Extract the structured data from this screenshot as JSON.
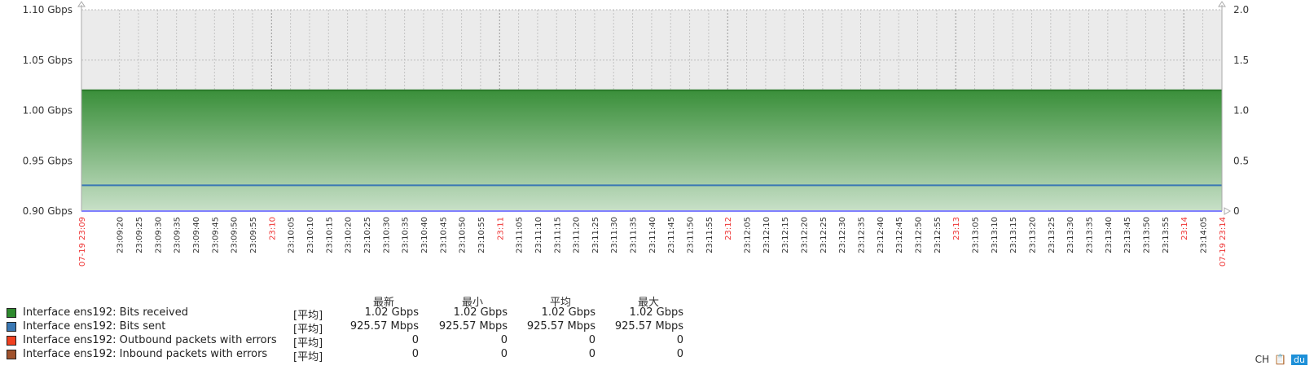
{
  "chart_data": {
    "type": "area",
    "title": "",
    "y_left_ticks": [
      "1.10 Gbps",
      "1.05 Gbps",
      "1.00 Gbps",
      "0.95 Gbps",
      "0.90 Gbps"
    ],
    "y_left_range_gbps": [
      0.9,
      1.1
    ],
    "y_right_ticks": [
      "2.0",
      "1.5",
      "1.0",
      "0.5",
      "0"
    ],
    "y_right_range": [
      0,
      2.0
    ],
    "x_start_label": "07-19 23:09",
    "x_end_label": "07-19 23:14",
    "x_ticks": [
      "23:09:20",
      "23:09:25",
      "23:09:30",
      "23:09:35",
      "23:09:40",
      "23:09:45",
      "23:09:50",
      "23:09:55",
      "23:10",
      "23:10:05",
      "23:10:10",
      "23:10:15",
      "23:10:20",
      "23:10:25",
      "23:10:30",
      "23:10:35",
      "23:10:40",
      "23:10:45",
      "23:10:50",
      "23:10:55",
      "23:11",
      "23:11:05",
      "23:11:10",
      "23:11:15",
      "23:11:20",
      "23:11:25",
      "23:11:30",
      "23:11:35",
      "23:11:40",
      "23:11:45",
      "23:11:50",
      "23:11:55",
      "23:12",
      "23:12:05",
      "23:12:10",
      "23:12:15",
      "23:12:20",
      "23:12:25",
      "23:12:30",
      "23:12:35",
      "23:12:40",
      "23:12:45",
      "23:12:50",
      "23:12:55",
      "23:13",
      "23:13:05",
      "23:13:10",
      "23:13:15",
      "23:13:20",
      "23:13:25",
      "23:13:30",
      "23:13:35",
      "23:13:40",
      "23:13:45",
      "23:13:50",
      "23:13:55",
      "23:14",
      "23:14:05"
    ],
    "grid": true,
    "series": [
      {
        "name": "Interface ens192: Bits received",
        "color": "#2e8a2e",
        "style": "filled",
        "values_gbps": [
          1.02,
          1.02
        ]
      },
      {
        "name": "Interface ens192: Bits sent",
        "color": "#3a78b4",
        "style": "line",
        "values_gbps": [
          0.92557,
          0.92557
        ]
      },
      {
        "name": "Interface ens192: Outbound packets with errors",
        "color": "#f04020",
        "style": "line",
        "values": [
          0,
          0
        ]
      },
      {
        "name": "Interface ens192: Inbound packets with errors",
        "color": "#a0522d",
        "style": "line",
        "values": [
          0,
          0
        ]
      }
    ]
  },
  "legend": {
    "headers": [
      "最新",
      "最小",
      "平均",
      "最大"
    ],
    "rows": [
      {
        "name": "Interface ens192: Bits received",
        "func": "[平均]",
        "values": [
          "1.02 Gbps",
          "1.02 Gbps",
          "1.02 Gbps",
          "1.02 Gbps"
        ],
        "color": "#2e8a2e"
      },
      {
        "name": "Interface ens192: Bits sent",
        "func": "[平均]",
        "values": [
          "925.57 Mbps",
          "925.57 Mbps",
          "925.57 Mbps",
          "925.57 Mbps"
        ],
        "color": "#3a78b4"
      },
      {
        "name": "Interface ens192: Outbound packets with errors",
        "func": "[平均]",
        "values": [
          "0",
          "0",
          "0",
          "0"
        ],
        "color": "#f04020"
      },
      {
        "name": "Interface ens192: Inbound packets with errors",
        "func": "[平均]",
        "values": [
          "0",
          "0",
          "0",
          "0"
        ],
        "color": "#a0522d"
      }
    ]
  },
  "tray": {
    "ime": "CH",
    "badge": "du"
  }
}
